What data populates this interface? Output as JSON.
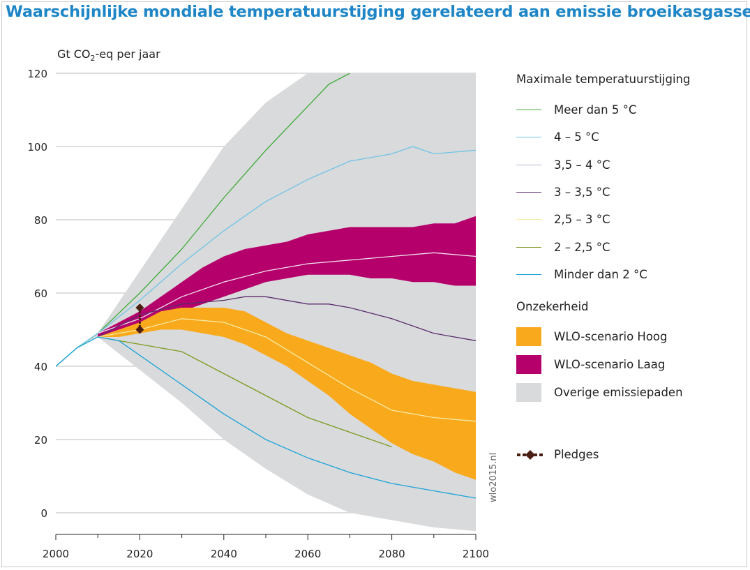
{
  "title": "Waarschijnlijke mondiale temperatuurstijging gerelateerd aan emissie broeikasgassen",
  "ylabel_parts": {
    "pre": "Gt CO",
    "sub": "2",
    "post": "-eq per jaar"
  },
  "watermark": "wlo2015.nl",
  "legend": {
    "temp_heading": "Maximale temperatuurstijging",
    "temp_items": [
      {
        "label": "Meer dan 5 °C",
        "color": "#3aaa35"
      },
      {
        "label": "4 – 5 °C",
        "color": "#6ec3e8"
      },
      {
        "label": "3,5 – 4 °C",
        "color": "#b9b3d6"
      },
      {
        "label": "3 – 3,5 °C",
        "color": "#5a2c6e"
      },
      {
        "label": "2,5 – 3 °C",
        "color": "#f6eba6"
      },
      {
        "label": "2 – 2,5 °C",
        "color": "#7a9a1e"
      },
      {
        "label": "Minder dan 2 °C",
        "color": "#1aa3d8"
      }
    ],
    "unc_heading": "Onzekerheid",
    "unc_items": [
      {
        "label": "WLO-scenario Hoog",
        "color": "#f9a91c"
      },
      {
        "label": "WLO-scenario Laag",
        "color": "#b5006b"
      },
      {
        "label": "Overige emissiepaden",
        "color": "#d9dadb"
      }
    ],
    "pledges_label": "Pledges",
    "pledges_color": "#4a1e12"
  },
  "chart_data": {
    "type": "area",
    "title": "Waarschijnlijke mondiale temperatuurstijging gerelateerd aan emissie broeikasgassen",
    "ylabel": "Gt CO2-eq per jaar",
    "xlim": [
      2000,
      2100
    ],
    "ylim": [
      -5,
      120
    ],
    "x_ticks": [
      2000,
      2020,
      2040,
      2060,
      2080,
      2100
    ],
    "y_ticks": [
      0,
      20,
      40,
      60,
      80,
      100,
      120
    ],
    "grid": "horizontal",
    "legend_position": "right",
    "bands": [
      {
        "name": "Overige emissiepaden",
        "color": "#d9dadb",
        "x": [
          2000,
          2005,
          2010,
          2020,
          2030,
          2040,
          2050,
          2060,
          2070,
          2080,
          2090,
          2100
        ],
        "upper": [
          40,
          45,
          49,
          66,
          83,
          100,
          112,
          120,
          120,
          120,
          120,
          120
        ],
        "lower": [
          40,
          45,
          48,
          39,
          30,
          20,
          12,
          5,
          0,
          -2,
          -4,
          -5
        ]
      },
      {
        "name": "WLO-scenario Laag",
        "color": "#b5006b",
        "x": [
          2010,
          2015,
          2020,
          2025,
          2030,
          2035,
          2040,
          2045,
          2050,
          2055,
          2060,
          2065,
          2070,
          2075,
          2080,
          2085,
          2090,
          2095,
          2100
        ],
        "upper": [
          49,
          52,
          55,
          59,
          63,
          67,
          70,
          72,
          73,
          74,
          76,
          77,
          78,
          78,
          78,
          78,
          79,
          79,
          81
        ],
        "lower": [
          48,
          50,
          51,
          53,
          55,
          57,
          59,
          61,
          63,
          64,
          65,
          65,
          65,
          64,
          64,
          63,
          63,
          62,
          62
        ]
      },
      {
        "name": "WLO-scenario Hoog",
        "color": "#f9a91c",
        "x": [
          2010,
          2015,
          2020,
          2025,
          2030,
          2035,
          2040,
          2045,
          2050,
          2055,
          2060,
          2065,
          2070,
          2075,
          2080,
          2085,
          2090,
          2095,
          2100
        ],
        "upper": [
          48,
          50,
          52,
          55,
          56,
          56,
          56,
          55,
          52,
          49,
          47,
          45,
          43,
          41,
          38,
          36,
          35,
          34,
          33
        ],
        "lower": [
          48,
          48,
          49,
          50,
          50,
          49,
          48,
          46,
          43,
          40,
          36,
          32,
          27,
          23,
          19,
          16,
          14,
          11,
          9
        ]
      }
    ],
    "series": [
      {
        "name": "Meer dan 5 °C",
        "color": "#3aaa35",
        "x": [
          2000,
          2005,
          2010,
          2020,
          2030,
          2040,
          2050,
          2060,
          2065,
          2070
        ],
        "y": [
          40,
          45,
          49,
          60,
          72,
          86,
          99,
          111,
          117,
          120
        ]
      },
      {
        "name": "4 – 5 °C",
        "color": "#6ec3e8",
        "x": [
          2000,
          2005,
          2010,
          2020,
          2030,
          2040,
          2050,
          2060,
          2070,
          2080,
          2085,
          2090,
          2100
        ],
        "y": [
          40,
          45,
          49,
          58,
          68,
          77,
          85,
          91,
          96,
          98,
          100,
          98,
          99
        ]
      },
      {
        "name": "3,5 – 4 °C",
        "color": "#efe2ee",
        "x": [
          2010,
          2020,
          2030,
          2040,
          2050,
          2060,
          2070,
          2080,
          2090,
          2100
        ],
        "y": [
          49,
          53,
          59,
          63,
          66,
          68,
          69,
          70,
          71,
          70
        ]
      },
      {
        "name": "3 – 3,5 °C",
        "color": "#5a2c6e",
        "x": [
          2010,
          2020,
          2030,
          2040,
          2045,
          2050,
          2060,
          2065,
          2070,
          2080,
          2090,
          2100
        ],
        "y": [
          48,
          54,
          57,
          58,
          59,
          59,
          57,
          57,
          56,
          53,
          49,
          47
        ]
      },
      {
        "name": "2,5 – 3 °C",
        "color": "#f6eba6",
        "x": [
          2010,
          2020,
          2030,
          2040,
          2050,
          2060,
          2070,
          2080,
          2090,
          2100
        ],
        "y": [
          48,
          50,
          53,
          52,
          48,
          41,
          34,
          28,
          26,
          25
        ]
      },
      {
        "name": "2 – 2,5 °C",
        "color": "#7a9a1e",
        "x": [
          2010,
          2020,
          2030,
          2040,
          2050,
          2060,
          2070,
          2080
        ],
        "y": [
          48,
          46,
          44,
          38,
          32,
          26,
          22,
          18
        ]
      },
      {
        "name": "Minder dan 2 °C",
        "color": "#1aa3d8",
        "x": [
          2000,
          2005,
          2010,
          2015,
          2020,
          2030,
          2040,
          2050,
          2060,
          2070,
          2080,
          2090,
          2100
        ],
        "y": [
          40,
          45,
          48,
          47,
          43,
          35,
          27,
          20,
          15,
          11,
          8,
          6,
          4
        ]
      }
    ],
    "pledges": {
      "x": 2020,
      "y_low": 50,
      "y_high": 56,
      "color": "#4a1e12"
    }
  }
}
